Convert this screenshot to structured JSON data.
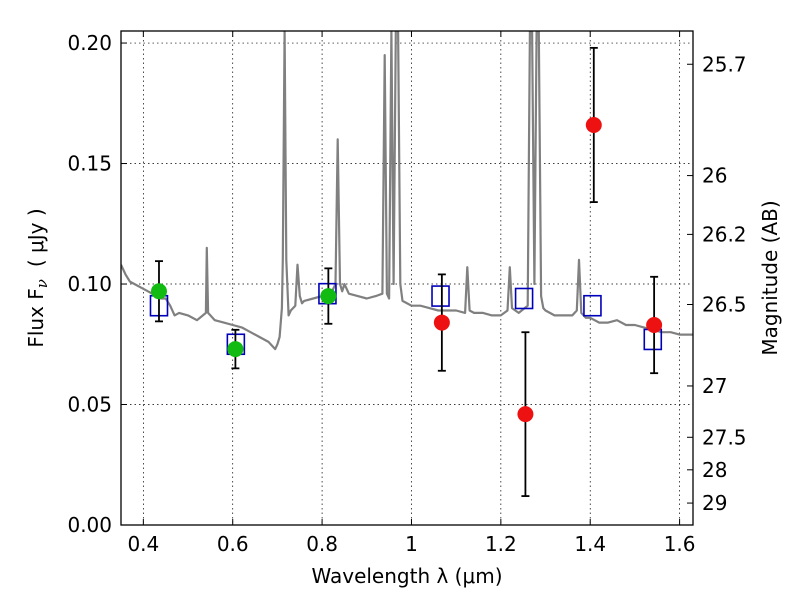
{
  "chart_data": {
    "type": "scatter",
    "xlabel": "Wavelength  λ (μm)",
    "ylabel_left": "Flux  F",
    "ylabel_left_sub": "ν",
    "ylabel_left_unit": "( μJy )",
    "ylabel_right": "Magnitude (AB)",
    "xlim": [
      0.35,
      1.63
    ],
    "ylim": [
      0.0,
      0.205
    ],
    "x_ticks": [
      0.4,
      0.6,
      0.8,
      1.0,
      1.2,
      1.4,
      1.6
    ],
    "x_tick_labels": [
      "0.4",
      "0.6",
      "0.8",
      "1",
      "1.2",
      "1.4",
      "1.6"
    ],
    "y_ticks": [
      0.0,
      0.05,
      0.1,
      0.15,
      0.2
    ],
    "y_tick_labels": [
      "0.00",
      "0.05",
      "0.10",
      "0.15",
      "0.20"
    ],
    "right_ticks": [
      {
        "label": "25.7",
        "flux": 0.1912
      },
      {
        "label": "26",
        "flux": 0.145
      },
      {
        "label": "26.2",
        "flux": 0.1206
      },
      {
        "label": "26.5",
        "flux": 0.0915
      },
      {
        "label": "27",
        "flux": 0.0577
      },
      {
        "label": "27.5",
        "flux": 0.0364
      },
      {
        "label": "28",
        "flux": 0.0229
      },
      {
        "label": "29",
        "flux": 0.0091
      }
    ],
    "grid": true,
    "colors": {
      "spectrum": "#808080",
      "model": "#0000bb",
      "optical": "#11bb11",
      "nir": "#ee1111",
      "errorbar": "#000000"
    },
    "spectrum": {
      "x": [
        0.35,
        0.36,
        0.37,
        0.38,
        0.4,
        0.42,
        0.44,
        0.45,
        0.46,
        0.47,
        0.48,
        0.5,
        0.52,
        0.54,
        0.542,
        0.545,
        0.55,
        0.56,
        0.58,
        0.6,
        0.62,
        0.64,
        0.66,
        0.68,
        0.695,
        0.7,
        0.705,
        0.71,
        0.712,
        0.716,
        0.72,
        0.725,
        0.73,
        0.74,
        0.745,
        0.75,
        0.755,
        0.76,
        0.78,
        0.8,
        0.82,
        0.83,
        0.835,
        0.84,
        0.845,
        0.85,
        0.86,
        0.88,
        0.9,
        0.92,
        0.935,
        0.94,
        0.945,
        0.95,
        0.955,
        0.96,
        0.965,
        0.97,
        0.975,
        0.98,
        1.0,
        1.02,
        1.04,
        1.06,
        1.08,
        1.1,
        1.12,
        1.125,
        1.13,
        1.14,
        1.16,
        1.18,
        1.2,
        1.215,
        1.22,
        1.225,
        1.24,
        1.26,
        1.265,
        1.27,
        1.275,
        1.28,
        1.285,
        1.29,
        1.295,
        1.3,
        1.32,
        1.34,
        1.36,
        1.37,
        1.375,
        1.38,
        1.39,
        1.4,
        1.42,
        1.44,
        1.46,
        1.48,
        1.5,
        1.52,
        1.54,
        1.56,
        1.58,
        1.6,
        1.62,
        1.63
      ],
      "y": [
        0.108,
        0.104,
        0.101,
        0.1,
        0.098,
        0.096,
        0.094,
        0.094,
        0.091,
        0.087,
        0.088,
        0.087,
        0.085,
        0.088,
        0.115,
        0.088,
        0.087,
        0.085,
        0.084,
        0.083,
        0.082,
        0.08,
        0.078,
        0.076,
        0.073,
        0.075,
        0.078,
        0.09,
        0.11,
        0.205,
        0.11,
        0.087,
        0.089,
        0.091,
        0.108,
        0.095,
        0.092,
        0.093,
        0.094,
        0.095,
        0.096,
        0.1,
        0.16,
        0.1,
        0.097,
        0.1,
        0.096,
        0.095,
        0.094,
        0.095,
        0.096,
        0.195,
        0.096,
        0.094,
        0.205,
        0.1,
        0.205,
        0.205,
        0.1,
        0.093,
        0.091,
        0.091,
        0.09,
        0.089,
        0.089,
        0.089,
        0.088,
        0.107,
        0.089,
        0.088,
        0.088,
        0.087,
        0.087,
        0.089,
        0.107,
        0.09,
        0.088,
        0.091,
        0.205,
        0.205,
        0.1,
        0.205,
        0.205,
        0.095,
        0.09,
        0.089,
        0.087,
        0.087,
        0.087,
        0.089,
        0.11,
        0.088,
        0.086,
        0.086,
        0.084,
        0.084,
        0.085,
        0.083,
        0.083,
        0.082,
        0.081,
        0.08,
        0.08,
        0.079,
        0.079,
        0.079
      ]
    },
    "model_points": [
      {
        "x": 0.435,
        "y": 0.091
      },
      {
        "x": 0.607,
        "y": 0.075
      },
      {
        "x": 0.812,
        "y": 0.096
      },
      {
        "x": 1.065,
        "y": 0.095
      },
      {
        "x": 1.252,
        "y": 0.094
      },
      {
        "x": 1.405,
        "y": 0.091
      },
      {
        "x": 1.54,
        "y": 0.077
      }
    ],
    "observed_optical": [
      {
        "x": 0.435,
        "y": 0.097,
        "err": 0.0125
      },
      {
        "x": 0.606,
        "y": 0.073,
        "err": 0.008
      },
      {
        "x": 0.814,
        "y": 0.095,
        "err": 0.0115
      }
    ],
    "observed_nir": [
      {
        "x": 1.068,
        "y": 0.084,
        "err": 0.02
      },
      {
        "x": 1.255,
        "y": 0.046,
        "err": 0.034
      },
      {
        "x": 1.408,
        "y": 0.166,
        "err": 0.032
      },
      {
        "x": 1.543,
        "y": 0.083,
        "err": 0.02
      }
    ]
  }
}
